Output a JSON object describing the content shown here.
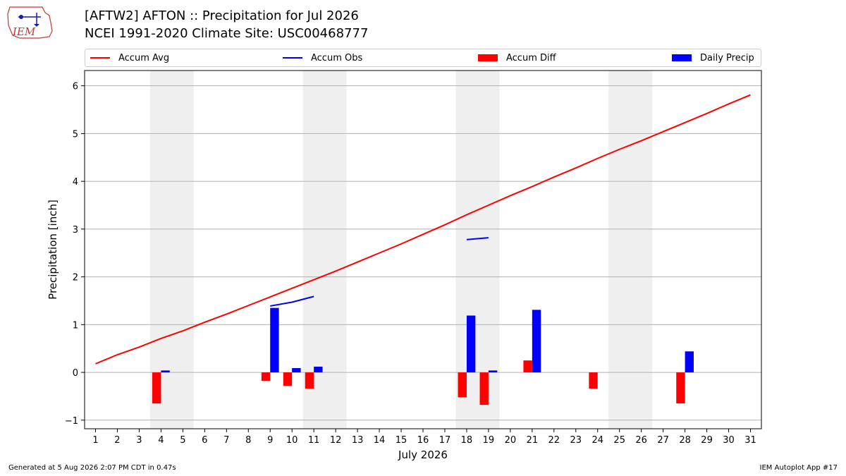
{
  "header": {
    "title": "[AFTW2] AFTON :: Precipitation for Jul 2026",
    "subtitle": "NCEI 1991-2020 Climate Site: USC00468777",
    "logo_text": "IEM"
  },
  "footer": {
    "left": "Generated at 5 Aug 2026 2:07 PM CDT in 0.47s",
    "right": "IEM Autoplot App #17"
  },
  "colors": {
    "avg": "#ff0000",
    "obs": "#0000ff",
    "diff": "#ff0000",
    "daily": "#0000ff",
    "weekend_band": "#efefef",
    "grid": "#b0b0b0"
  },
  "legend": {
    "placement": "top",
    "items": [
      {
        "label": "Accum Avg",
        "kind": "line",
        "color": "#ff0000"
      },
      {
        "label": "Accum Obs",
        "kind": "line",
        "color": "#0000ff"
      },
      {
        "label": "Accum Diff",
        "kind": "patch",
        "color": "#ff0000"
      },
      {
        "label": "Daily Precip",
        "kind": "patch",
        "color": "#0000ff"
      }
    ]
  },
  "chart_data": {
    "type": "bar",
    "title": "[AFTW2] AFTON :: Precipitation for Jul 2026",
    "xlabel": "July 2026",
    "ylabel": "Precipitation [inch]",
    "ylim": [
      -1.18,
      6.32
    ],
    "xlim": [
      0.5,
      31.5
    ],
    "grid": "y",
    "x_ticks": [
      1,
      2,
      3,
      4,
      5,
      6,
      7,
      8,
      9,
      10,
      11,
      12,
      13,
      14,
      15,
      16,
      17,
      18,
      19,
      20,
      21,
      22,
      23,
      24,
      25,
      26,
      27,
      28,
      29,
      30,
      31
    ],
    "y_ticks": [
      -1,
      0,
      1,
      2,
      3,
      4,
      5,
      6
    ],
    "weekend_bands": [
      [
        4,
        5
      ],
      [
        11,
        12
      ],
      [
        18,
        19
      ],
      [
        25,
        26
      ]
    ],
    "series": [
      {
        "name": "Accum Avg",
        "type": "line",
        "x": [
          1,
          2,
          3,
          4,
          5,
          6,
          7,
          8,
          9,
          10,
          11,
          12,
          13,
          14,
          15,
          16,
          17,
          18,
          19,
          20,
          21,
          22,
          23,
          24,
          25,
          26,
          27,
          28,
          29,
          30,
          31
        ],
        "values": [
          0.18,
          0.37,
          0.53,
          0.71,
          0.87,
          1.05,
          1.22,
          1.4,
          1.58,
          1.76,
          1.94,
          2.12,
          2.31,
          2.5,
          2.69,
          2.89,
          3.09,
          3.3,
          3.5,
          3.7,
          3.89,
          4.09,
          4.28,
          4.48,
          4.67,
          4.85,
          5.04,
          5.23,
          5.42,
          5.62,
          5.81
        ]
      },
      {
        "name": "Accum Obs",
        "type": "line",
        "segments": [
          {
            "x": [
              9,
              10,
              11
            ],
            "values": [
              1.39,
              1.47,
              1.59
            ]
          },
          {
            "x": [
              18,
              19
            ],
            "values": [
              2.78,
              2.82
            ]
          }
        ]
      },
      {
        "name": "Accum Diff",
        "type": "bar",
        "x": [
          4,
          9,
          10,
          11,
          18,
          19,
          21,
          24,
          28
        ],
        "values": [
          -0.65,
          -0.18,
          -0.28,
          -0.34,
          -0.52,
          -0.68,
          0.25,
          -0.34,
          -0.65
        ]
      },
      {
        "name": "Daily Precip",
        "type": "bar",
        "x": [
          4,
          9,
          10,
          11,
          18,
          19,
          21,
          28
        ],
        "values": [
          0.04,
          1.35,
          0.09,
          0.12,
          1.19,
          0.04,
          1.31,
          0.44
        ]
      }
    ]
  }
}
